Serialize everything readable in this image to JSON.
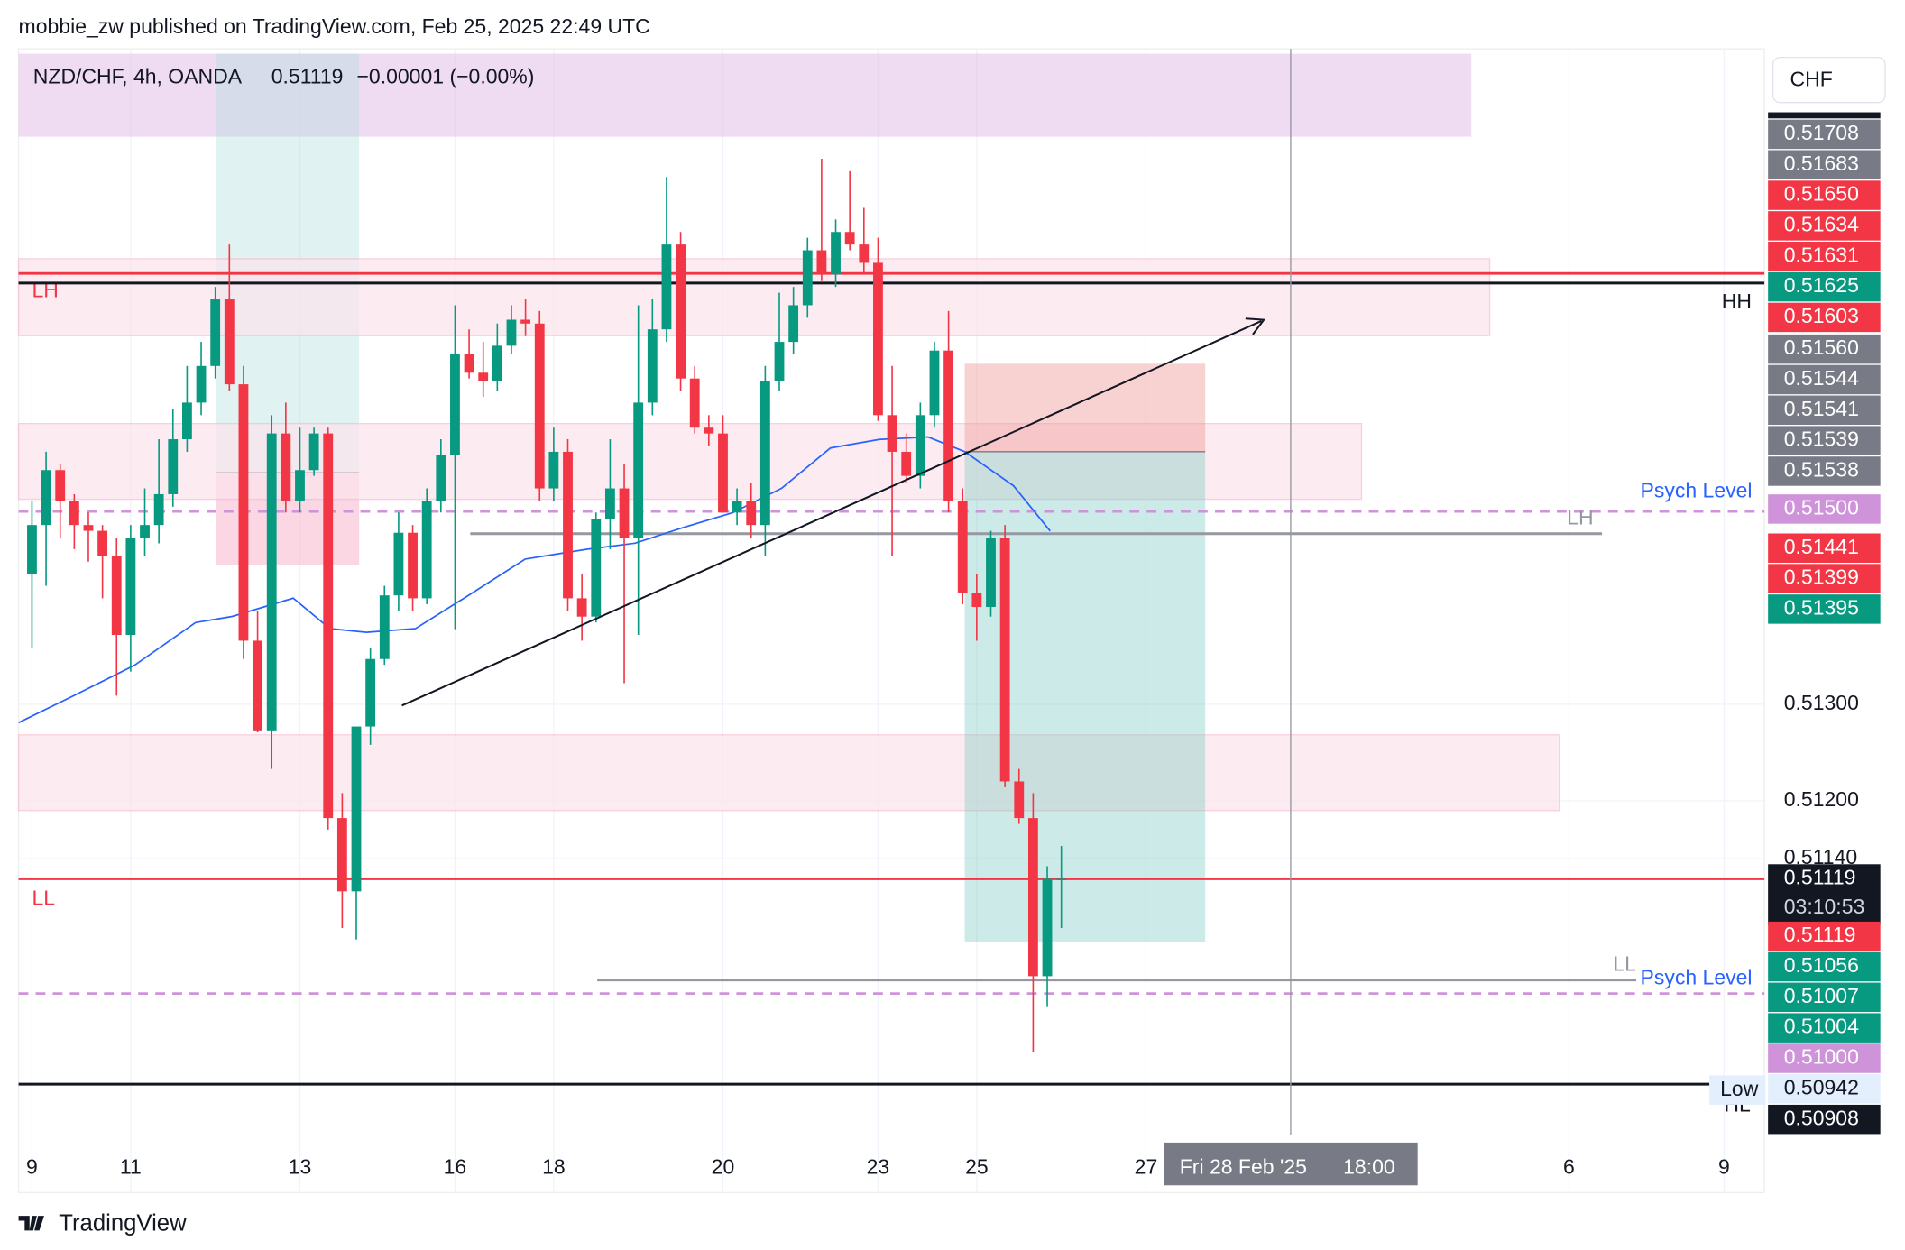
{
  "header": {
    "text": "mobbie_zw published on TradingView.com, Feb 25, 2025 22:49 UTC"
  },
  "footer": {
    "brand": "TradingView"
  },
  "legend": {
    "symbol": "NZD/CHF, 4h, OANDA",
    "price": "0.51119",
    "change": "−0.00001 (−0.00%)"
  },
  "crosshair": {
    "date": "Fri 28 Feb '25",
    "time": "18:00"
  },
  "chart_data": {
    "type": "candlestick",
    "currency": "CHF",
    "up_color": "#089981",
    "down_color": "#f23645",
    "ylim": [
      0.50853,
      0.5198
    ],
    "yticks": [
      {
        "value": 0.513,
        "label": "0.51300"
      },
      {
        "value": 0.512,
        "label": "0.51200"
      },
      {
        "value": 0.5114,
        "label": "0.51140"
      }
    ],
    "categories": [
      "9",
      null,
      null,
      null,
      null,
      null,
      null,
      "11",
      null,
      null,
      null,
      null,
      null,
      null,
      null,
      null,
      null,
      null,
      null,
      "13",
      null,
      null,
      null,
      null,
      null,
      null,
      null,
      null,
      null,
      null,
      "16",
      null,
      null,
      null,
      null,
      null,
      null,
      "18",
      null,
      null,
      null,
      null,
      null,
      null,
      null,
      null,
      null,
      null,
      null,
      "20",
      null,
      null,
      null,
      null,
      null,
      null,
      null,
      null,
      null,
      null,
      "23",
      null,
      null,
      null,
      null,
      null,
      null,
      "25",
      null,
      null,
      null,
      null,
      null,
      null,
      null,
      null,
      null,
      null,
      null,
      "27",
      null,
      null,
      null,
      null,
      null,
      null,
      null,
      null,
      null,
      null,
      null,
      null,
      null,
      null,
      null,
      null,
      null,
      null,
      null,
      null,
      null,
      null,
      null,
      null,
      null,
      null,
      null,
      null,
      null,
      "6",
      null,
      null,
      null,
      null,
      null,
      null,
      null,
      null,
      null,
      null,
      "9",
      null,
      null,
      null
    ],
    "open": [
      0.51435,
      0.51486,
      0.51543,
      0.51511,
      0.51486,
      0.5148,
      0.51454,
      0.51372,
      0.51473,
      0.51486,
      0.51518,
      0.51575,
      0.51613,
      0.51651,
      0.5172,
      0.51632,
      0.51366,
      0.51273,
      0.51581,
      0.51511,
      0.51543,
      0.51581,
      0.51182,
      0.51106,
      0.51277,
      0.51347,
      0.51413,
      0.51478,
      0.5141,
      0.51511,
      0.51559,
      0.51663,
      0.51644,
      0.51635,
      0.51672,
      0.51699,
      0.51695,
      0.51524,
      0.51562,
      0.5141,
      0.51391,
      0.51492,
      0.51524,
      0.51473,
      0.51613,
      0.51689,
      0.51777,
      0.51638,
      0.51587,
      0.51581,
      0.51499,
      0.51511,
      0.51486,
      0.51635,
      0.51676,
      0.51714,
      0.51771,
      0.51746,
      0.5179,
      0.51777,
      0.51758,
      0.516,
      0.51562,
      0.51537,
      0.516,
      0.51667,
      0.51511,
      0.51416,
      0.51401,
      0.51473,
      0.5122,
      0.51182,
      0.51018,
      0.51119,
      null,
      null,
      null,
      null,
      null,
      null,
      null,
      null,
      null,
      null,
      null,
      null,
      null,
      null,
      null,
      null,
      null,
      null,
      null,
      null,
      null,
      null,
      null,
      null,
      null,
      null,
      null,
      null,
      null,
      null,
      null,
      null,
      null,
      null,
      null,
      null,
      null,
      null,
      null,
      null,
      null,
      null,
      null,
      null,
      null,
      null,
      null,
      null,
      null,
      null
    ],
    "high": [
      0.51511,
      0.51562,
      0.51549,
      0.51518,
      0.51499,
      0.51486,
      0.51473,
      0.51486,
      0.51524,
      0.51575,
      0.51606,
      0.51651,
      0.51676,
      0.51733,
      0.51777,
      0.51651,
      0.51397,
      0.516,
      0.51613,
      0.51587,
      0.51587,
      0.51587,
      0.51208,
      0.51271,
      0.51359,
      0.51423,
      0.51499,
      0.51486,
      0.51524,
      0.51575,
      0.51714,
      0.51689,
      0.51676,
      0.51695,
      0.51714,
      0.5172,
      0.51708,
      0.51587,
      0.51575,
      0.51435,
      0.51499,
      0.51575,
      0.51549,
      0.51714,
      0.5172,
      0.51847,
      0.5179,
      0.51651,
      0.516,
      0.516,
      0.51524,
      0.5153,
      0.51651,
      0.51727,
      0.51733,
      0.51784,
      0.51866,
      0.51803,
      0.51853,
      0.51815,
      0.51784,
      0.51651,
      0.51581,
      0.51613,
      0.51676,
      0.51708,
      0.51524,
      0.51435,
      0.5148,
      0.51486,
      0.51233,
      0.51208,
      0.51132,
      0.51153,
      null,
      null,
      null,
      null,
      null,
      null,
      null,
      null,
      null,
      null,
      null,
      null,
      null,
      null,
      null,
      null,
      null,
      null,
      null,
      null,
      null,
      null,
      null,
      null,
      null,
      null,
      null,
      null,
      null,
      null,
      null,
      null,
      null,
      null,
      null,
      null,
      null,
      null,
      null,
      null,
      null,
      null,
      null,
      null,
      null,
      null,
      null,
      null,
      null,
      null
    ],
    "low": [
      0.51359,
      0.51423,
      0.51473,
      0.51461,
      0.51448,
      0.5141,
      0.51309,
      0.51334,
      0.51454,
      0.51467,
      0.51505,
      0.51562,
      0.516,
      0.51638,
      0.51625,
      0.51347,
      0.51271,
      0.51233,
      0.51499,
      0.51499,
      0.51537,
      0.5117,
      0.51068,
      0.51056,
      0.51258,
      0.51341,
      0.51397,
      0.51397,
      0.51404,
      0.51499,
      0.51378,
      0.51638,
      0.51619,
      0.51625,
      0.51663,
      0.51682,
      0.51511,
      0.51511,
      0.51397,
      0.51366,
      0.51385,
      0.51461,
      0.51322,
      0.51372,
      0.516,
      0.51676,
      0.51625,
      0.51581,
      0.51568,
      0.51499,
      0.51486,
      0.51473,
      0.51454,
      0.51625,
      0.51663,
      0.51701,
      0.51739,
      0.51733,
      0.51771,
      0.51746,
      0.51594,
      0.51454,
      0.5153,
      0.51524,
      0.51587,
      0.51499,
      0.51404,
      0.51366,
      0.51391,
      0.51214,
      0.51176,
      0.50939,
      0.50986,
      0.51068,
      null,
      null,
      null,
      null,
      null,
      null,
      null,
      null,
      null,
      null,
      null,
      null,
      null,
      null,
      null,
      null,
      null,
      null,
      null,
      null,
      null,
      null,
      null,
      null,
      null,
      null,
      null,
      null,
      null,
      null,
      null,
      null,
      null,
      null,
      null,
      null,
      null,
      null,
      null,
      null,
      null,
      null,
      null,
      null,
      null,
      null,
      null,
      null,
      null,
      null
    ],
    "close": [
      0.51486,
      0.51543,
      0.51511,
      0.51486,
      0.5148,
      0.51454,
      0.51372,
      0.51473,
      0.51486,
      0.51518,
      0.51575,
      0.51613,
      0.51651,
      0.5172,
      0.51632,
      0.51366,
      0.51273,
      0.51581,
      0.51511,
      0.51543,
      0.51581,
      0.51182,
      0.51106,
      0.51277,
      0.51347,
      0.51413,
      0.51478,
      0.5141,
      0.51511,
      0.51559,
      0.51663,
      0.51644,
      0.51635,
      0.51672,
      0.51699,
      0.51695,
      0.51524,
      0.51562,
      0.5141,
      0.51391,
      0.51492,
      0.51524,
      0.51473,
      0.51613,
      0.51689,
      0.51777,
      0.51638,
      0.51587,
      0.51581,
      0.51499,
      0.51511,
      0.51486,
      0.51635,
      0.51676,
      0.51714,
      0.51771,
      0.51746,
      0.5179,
      0.51777,
      0.51758,
      0.516,
      0.51562,
      0.51537,
      0.516,
      0.51667,
      0.51511,
      0.51416,
      0.51401,
      0.51473,
      0.5122,
      0.51182,
      0.51018,
      0.51119,
      0.51119,
      null,
      null,
      null,
      null,
      null,
      null,
      null,
      null,
      null,
      null,
      null,
      null,
      null,
      null,
      null,
      null,
      null,
      null,
      null,
      null,
      null,
      null,
      null,
      null,
      null,
      null,
      null,
      null,
      null,
      null,
      null,
      null,
      null,
      null,
      null,
      null,
      null,
      null,
      null,
      null,
      null,
      null,
      null,
      null,
      null,
      null,
      null,
      null,
      null,
      null
    ],
    "levels": [
      {
        "label": "LH",
        "value": 0.51747,
        "color": "#f23645"
      },
      {
        "label": "HH",
        "value": 0.51737,
        "color": "#131722"
      },
      {
        "label": "Psych Level",
        "value": 0.515,
        "color": "#ce93d8",
        "label_color": "#2962ff",
        "dashed": true
      },
      {
        "label": "LH",
        "value": 0.51477,
        "color": "#9598a1"
      },
      {
        "label": "LL",
        "value": 0.51119,
        "color": "#f23645"
      },
      {
        "label": "LL",
        "value": 0.51014,
        "color": "#9598a1"
      },
      {
        "label": "Psych Level",
        "value": 0.51,
        "color": "#ce93d8",
        "label_color": "#2962ff",
        "dashed": true
      },
      {
        "label": "Low",
        "value": 0.50906,
        "color": "#131722"
      }
    ],
    "annotations": [
      {
        "text": "HL"
      }
    ],
    "countdown": "03:10:53",
    "price_tags": [
      {
        "label": "0.51708",
        "color": "#787b86"
      },
      {
        "label": "0.51683",
        "color": "#787b86"
      },
      {
        "label": "0.51650",
        "color": "#f23645"
      },
      {
        "label": "0.51634",
        "color": "#f23645"
      },
      {
        "label": "0.51631",
        "color": "#f23645"
      },
      {
        "label": "0.51625",
        "color": "#089981"
      },
      {
        "label": "0.51603",
        "color": "#f23645"
      },
      {
        "label": "0.51560",
        "color": "#787b86"
      },
      {
        "label": "0.51544",
        "color": "#787b86"
      },
      {
        "label": "0.51541",
        "color": "#787b86"
      },
      {
        "label": "0.51539",
        "color": "#787b86"
      },
      {
        "label": "0.51538",
        "color": "#787b86"
      },
      {
        "label": "0.51500",
        "color": "#ce93d8"
      },
      {
        "label": "0.51441",
        "color": "#f23645"
      },
      {
        "label": "0.51399",
        "color": "#f23645"
      },
      {
        "label": "0.51395",
        "color": "#089981"
      },
      {
        "label": "0.51119",
        "color": "#131722"
      },
      {
        "label": "0.51119",
        "color": "#f23645"
      },
      {
        "label": "0.51056",
        "color": "#089981"
      },
      {
        "label": "0.51007",
        "color": "#089981"
      },
      {
        "label": "0.51004",
        "color": "#089981"
      },
      {
        "label": "0.51000",
        "color": "#ce93d8"
      },
      {
        "label": "0.50942",
        "color": "#e3effd",
        "text_color": "#131722"
      },
      {
        "label": "0.50908",
        "color": "#131722"
      }
    ]
  }
}
